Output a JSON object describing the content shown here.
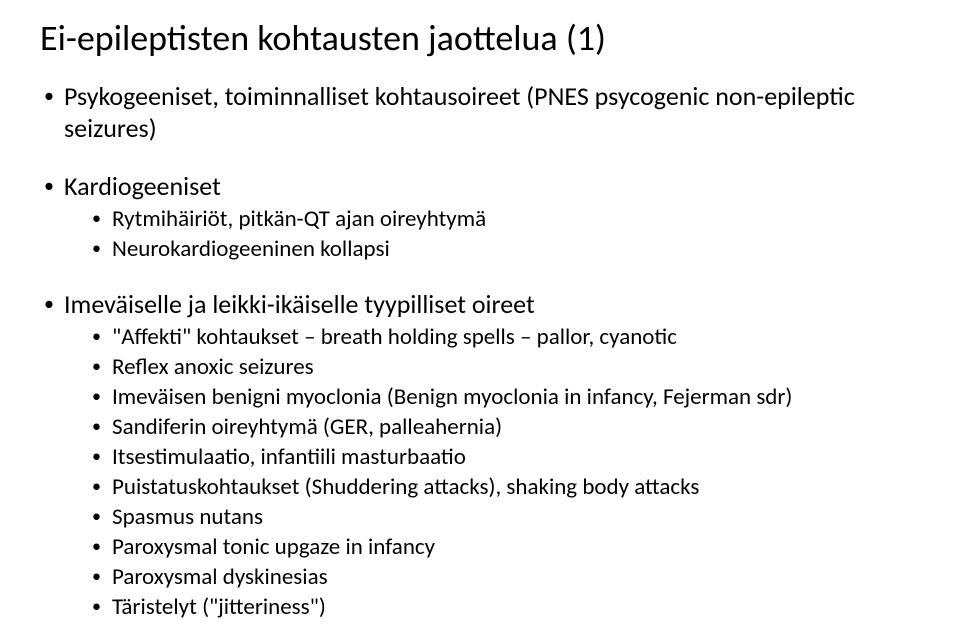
{
  "title": "Ei-epileptisten kohtausten jaottelua (1)",
  "bullets": {
    "b1": "Psykogeeniset, toiminnalliset kohtausoireet (PNES psycogenic non-epileptic seizures)",
    "b2": "Kardiogeeniset",
    "b2_1": "Rytmihäiriöt, pitkän-QT ajan oireyhtymä",
    "b2_2": "Neurokardiogeeninen kollapsi",
    "b3": "Imeväiselle ja leikki-ikäiselle tyypilliset oireet",
    "b3_1": "\"Affekti\" kohtaukset – breath holding spells – pallor, cyanotic",
    "b3_2": "Reflex anoxic seizures",
    "b3_3": "Imeväisen benigni myoclonia (Benign myoclonia in infancy, Fejerman sdr)",
    "b3_4": "Sandiferin oireyhtymä (GER, palleahernia)",
    "b3_5": "Itsestimulaatio, infantiili masturbaatio",
    "b3_6": "Puistatuskohtaukset (Shuddering attacks), shaking body attacks",
    "b3_7": "Spasmus nutans",
    "b3_8": "Paroxysmal tonic upgaze in infancy",
    "b3_9": "Paroxysmal dyskinesias",
    "b3_10": "Täristelyt (\"jitteriness\")"
  }
}
